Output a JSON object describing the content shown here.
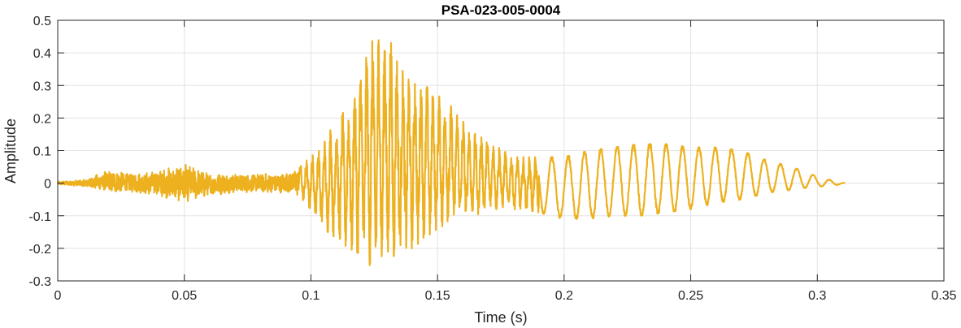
{
  "chart_data": {
    "type": "line",
    "title": "PSA-023-005-0004",
    "xlabel": "Time (s)",
    "ylabel": "Amplitude",
    "xlim": [
      0,
      0.35
    ],
    "ylim": [
      -0.3,
      0.5
    ],
    "xticks": [
      0,
      0.05,
      0.1,
      0.15,
      0.2,
      0.25,
      0.3,
      0.35
    ],
    "xtick_labels": [
      "0",
      "0.05",
      "0.1",
      "0.15",
      "0.2",
      "0.25",
      "0.3",
      "0.35"
    ],
    "yticks": [
      -0.3,
      -0.2,
      -0.1,
      0,
      0.1,
      0.2,
      0.3,
      0.4,
      0.5
    ],
    "ytick_labels": [
      "-0.3",
      "-0.2",
      "-0.1",
      "0",
      "0.1",
      "0.2",
      "0.3",
      "0.4",
      "0.5"
    ],
    "grid": true,
    "line_color": "#EDB120",
    "series": [
      {
        "envelope": {
          "t": [
            0,
            0.01,
            0.02,
            0.03,
            0.04,
            0.05,
            0.06,
            0.07,
            0.08,
            0.09,
            0.095,
            0.1,
            0.105,
            0.11,
            0.115,
            0.12,
            0.125,
            0.13,
            0.135,
            0.14,
            0.145,
            0.15,
            0.155,
            0.16,
            0.165,
            0.17,
            0.18,
            0.19,
            0.2,
            0.21,
            0.22,
            0.23,
            0.24,
            0.25,
            0.26,
            0.27,
            0.28,
            0.29,
            0.3,
            0.305,
            0.311
          ],
          "upper": [
            0.005,
            0.01,
            0.04,
            0.03,
            0.04,
            0.06,
            0.03,
            0.03,
            0.03,
            0.03,
            0.05,
            0.08,
            0.12,
            0.2,
            0.23,
            0.36,
            0.45,
            0.47,
            0.35,
            0.33,
            0.3,
            0.27,
            0.24,
            0.19,
            0.15,
            0.13,
            0.08,
            0.08,
            0.08,
            0.1,
            0.11,
            0.12,
            0.12,
            0.11,
            0.11,
            0.1,
            0.07,
            0.05,
            0.02,
            0.01,
            0.0
          ],
          "lower": [
            -0.005,
            -0.01,
            -0.03,
            -0.03,
            -0.04,
            -0.06,
            -0.04,
            -0.03,
            -0.03,
            -0.03,
            -0.04,
            -0.08,
            -0.14,
            -0.17,
            -0.2,
            -0.22,
            -0.27,
            -0.24,
            -0.21,
            -0.2,
            -0.17,
            -0.14,
            -0.12,
            -0.11,
            -0.1,
            -0.08,
            -0.08,
            -0.09,
            -0.11,
            -0.11,
            -0.1,
            -0.1,
            -0.09,
            -0.08,
            -0.06,
            -0.05,
            -0.03,
            -0.02,
            -0.01,
            -0.01,
            0.0
          ]
        }
      }
    ]
  }
}
